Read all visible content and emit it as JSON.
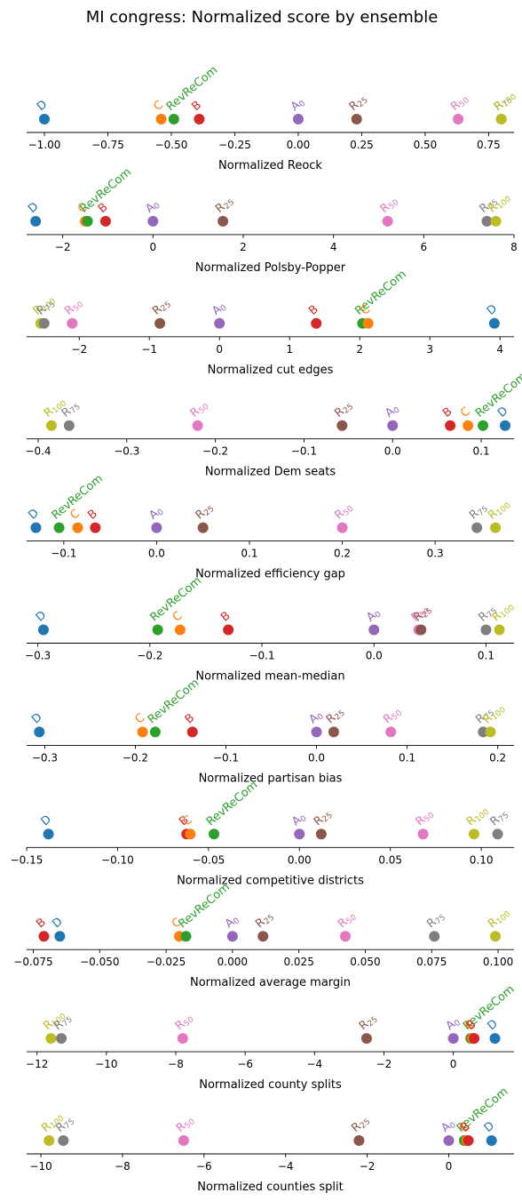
{
  "title": "MI congress: Normalized score by ensemble",
  "colors": {
    "D": "#1f77b4",
    "C": "#ff7f0e",
    "RevReCom": "#2ca02c",
    "B": "#d62728",
    "A0": "#9467bd",
    "R25": "#8c564b",
    "R50": "#e377c2",
    "R75": "#7f7f7f",
    "R100": "#bcbd22"
  },
  "series_labels": {
    "D": "D",
    "C": "C",
    "RevReCom": "RevReCom",
    "B": "B",
    "A0": "A0",
    "R25": "R25",
    "R50": "R50",
    "R75": "R75",
    "R100": "R100"
  },
  "chart_data": [
    {
      "type": "scatter",
      "xlabel": "Normalized Reock",
      "xlim": [
        -1.07,
        0.85
      ],
      "ticks": [
        -1.0,
        -0.75,
        -0.5,
        -0.25,
        0.0,
        0.25,
        0.5,
        0.75
      ],
      "tick_labels": [
        "−1.00",
        "−0.75",
        "−0.50",
        "−0.25",
        "0.00",
        "0.25",
        "0.50",
        "0.75"
      ],
      "points": {
        "D": -1.0,
        "C": -0.54,
        "RevReCom": -0.49,
        "B": -0.39,
        "A0": 0.0,
        "R25": 0.23,
        "R50": 0.63,
        "R75": 0.8,
        "R100": 0.8
      }
    },
    {
      "type": "scatter",
      "xlabel": "Normalized Polsby-Popper",
      "xlim": [
        -2.8,
        8.0
      ],
      "ticks": [
        -2,
        0,
        2,
        4,
        6,
        8
      ],
      "tick_labels": [
        "−2",
        "0",
        "2",
        "4",
        "6",
        "8"
      ],
      "points": {
        "D": -2.6,
        "C": -1.5,
        "RevReCom": -1.45,
        "B": -1.05,
        "A0": 0.0,
        "R25": 1.55,
        "R50": 5.2,
        "R75": 7.4,
        "R100": 7.6
      }
    },
    {
      "type": "scatter",
      "xlabel": "Normalized cut edges",
      "xlim": [
        -2.75,
        4.2
      ],
      "ticks": [
        -2,
        -1,
        0,
        1,
        2,
        3,
        4
      ],
      "tick_labels": [
        "−2",
        "−1",
        "0",
        "1",
        "2",
        "3",
        "4"
      ],
      "points": {
        "R100": -2.55,
        "R75": -2.5,
        "R50": -2.1,
        "R25": -0.85,
        "A0": 0.0,
        "B": 1.38,
        "RevReCom": 2.04,
        "C": 2.12,
        "D": 3.92
      }
    },
    {
      "type": "scatter",
      "xlabel": "Normalized Dem seats",
      "xlim": [
        -0.413,
        0.137
      ],
      "ticks": [
        -0.4,
        -0.3,
        -0.2,
        -0.1,
        0.0,
        0.1
      ],
      "tick_labels": [
        "−0.4",
        "−0.3",
        "−0.2",
        "−0.1",
        "0.0",
        "0.1"
      ],
      "points": {
        "R100": -0.385,
        "R75": -0.365,
        "R50": -0.22,
        "R25": -0.057,
        "A0": 0.0,
        "B": 0.065,
        "C": 0.085,
        "RevReCom": 0.102,
        "D": 0.127
      }
    },
    {
      "type": "scatter",
      "xlabel": "Normalized efficiency gap",
      "xlim": [
        -0.14,
        0.385
      ],
      "ticks": [
        -0.1,
        0.0,
        0.1,
        0.2,
        0.3
      ],
      "tick_labels": [
        "−0.1",
        "0.0",
        "0.1",
        "0.2",
        "0.3"
      ],
      "points": {
        "D": -0.13,
        "RevReCom": -0.105,
        "C": -0.085,
        "B": -0.066,
        "A0": 0.0,
        "R25": 0.05,
        "R50": 0.2,
        "R75": 0.345,
        "R100": 0.365
      }
    },
    {
      "type": "scatter",
      "xlabel": "Normalized mean-median",
      "xlim": [
        -0.31,
        0.125
      ],
      "ticks": [
        -0.3,
        -0.2,
        -0.1,
        0.0,
        0.1
      ],
      "tick_labels": [
        "−0.3",
        "−0.2",
        "−0.1",
        "0.0",
        "0.1"
      ],
      "points": {
        "D": -0.295,
        "RevReCom": -0.193,
        "C": -0.173,
        "B": -0.13,
        "A0": 0.0,
        "R50": 0.04,
        "R25": 0.042,
        "R75": 0.1,
        "R100": 0.112
      }
    },
    {
      "type": "scatter",
      "xlabel": "Normalized partisan bias",
      "xlim": [
        -0.32,
        0.218
      ],
      "ticks": [
        -0.3,
        -0.2,
        -0.1,
        0.0,
        0.1,
        0.2
      ],
      "tick_labels": [
        "−0.3",
        "−0.2",
        "−0.1",
        "0.0",
        "0.1",
        "0.2"
      ],
      "points": {
        "D": -0.306,
        "C": -0.192,
        "RevReCom": -0.178,
        "B": -0.137,
        "A0": 0.0,
        "R25": 0.019,
        "R50": 0.082,
        "R75": 0.184,
        "R100": 0.192
      }
    },
    {
      "type": "scatter",
      "xlabel": "Normalized competitive districts",
      "xlim": [
        -0.15,
        0.118
      ],
      "ticks": [
        -0.15,
        -0.1,
        -0.05,
        0.0,
        0.05,
        0.1
      ],
      "tick_labels": [
        "−0.15",
        "−0.10",
        "−0.05",
        "0.00",
        "0.05",
        "0.10"
      ],
      "points": {
        "D": -0.138,
        "B": -0.062,
        "C": -0.06,
        "RevReCom": -0.047,
        "A0": 0.0,
        "R25": 0.012,
        "R50": 0.068,
        "R100": 0.096,
        "R75": 0.109
      }
    },
    {
      "type": "scatter",
      "xlabel": "Normalized average margin",
      "xlim": [
        -0.0775,
        0.106
      ],
      "ticks": [
        -0.075,
        -0.05,
        -0.025,
        0.0,
        0.025,
        0.05,
        0.075,
        0.1
      ],
      "tick_labels": [
        "−0.075",
        "−0.050",
        "−0.025",
        "0.000",
        "0.025",
        "0.050",
        "0.075",
        "0.100"
      ],
      "points": {
        "B": -0.071,
        "D": -0.065,
        "C": -0.02,
        "RevReCom": -0.0175,
        "A0": 0.0,
        "R25": 0.0115,
        "R50": 0.0425,
        "R75": 0.076,
        "R100": 0.099
      }
    },
    {
      "type": "scatter",
      "xlabel": "Normalized county splits",
      "xlim": [
        -12.3,
        1.75
      ],
      "ticks": [
        -12,
        -10,
        -8,
        -6,
        -4,
        -2,
        0
      ],
      "tick_labels": [
        "−12",
        "−10",
        "−8",
        "−6",
        "−4",
        "−2",
        "0"
      ],
      "points": {
        "R100": -11.6,
        "R75": -11.3,
        "R50": -7.8,
        "R25": -2.5,
        "A0": 0.0,
        "RevReCom": 0.5,
        "C": 0.55,
        "B": 0.6,
        "D": 1.2
      }
    },
    {
      "type": "scatter",
      "xlabel": "Normalized counties split",
      "xlim": [
        -10.35,
        1.6
      ],
      "ticks": [
        -10,
        -8,
        -6,
        -4,
        -2,
        0
      ],
      "tick_labels": [
        "−10",
        "−8",
        "−6",
        "−4",
        "−2",
        "0"
      ],
      "points": {
        "R100": -9.8,
        "R75": -9.45,
        "R50": -6.5,
        "R25": -2.2,
        "A0": 0.0,
        "RevReCom": 0.38,
        "C": 0.44,
        "B": 0.48,
        "D": 1.05
      }
    }
  ]
}
